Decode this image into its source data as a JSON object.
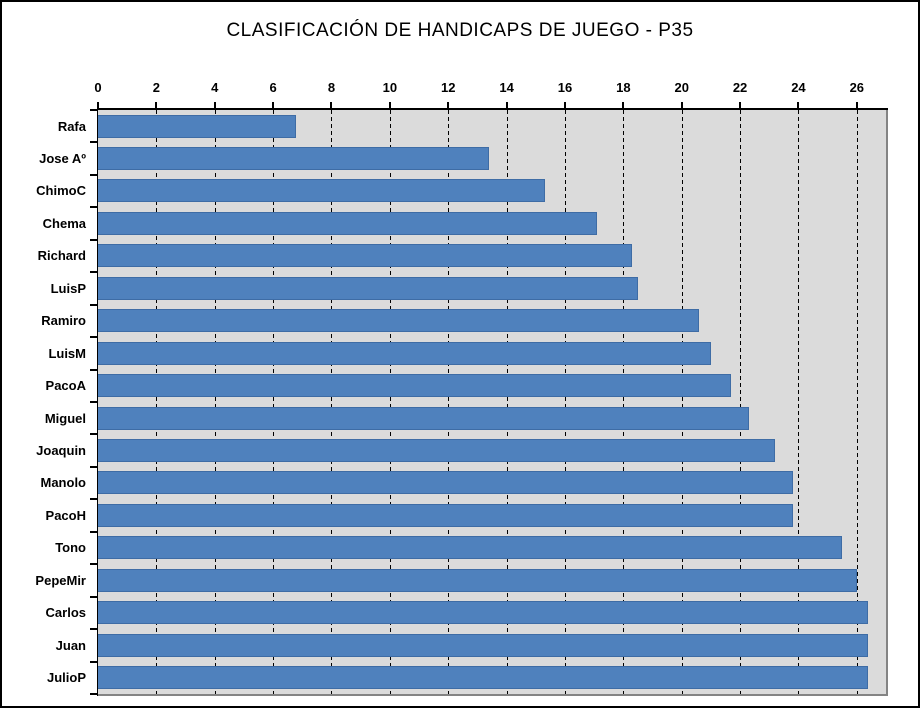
{
  "title": "CLASIFICACIÓN DE HANDICAPS DE JUEGO - P35",
  "chart_data": {
    "type": "bar",
    "orientation": "horizontal",
    "title": "CLASIFICACIÓN DE HANDICAPS DE JUEGO - P35",
    "categories": [
      "Rafa",
      "Jose Aº",
      "ChimoC",
      "Chema",
      "Richard",
      "LuisP",
      "Ramiro",
      "LuisM",
      "PacoA",
      "Miguel",
      "Joaquin",
      "Manolo",
      "PacoH",
      "Tono",
      "PepeMir",
      "Carlos",
      "Juan",
      "JulioP"
    ],
    "values": [
      6.8,
      13.4,
      15.3,
      17.1,
      18.3,
      18.5,
      20.6,
      21.0,
      21.7,
      22.3,
      23.2,
      23.8,
      23.8,
      25.5,
      26.0,
      26.4,
      26.4,
      26.4
    ],
    "xlabel": "",
    "ylabel": "",
    "xlim": [
      0,
      27
    ],
    "x_ticks": [
      0,
      2,
      4,
      6,
      8,
      10,
      12,
      14,
      16,
      18,
      20,
      22,
      24,
      26
    ],
    "grid": "vertical-dashed",
    "legend": "none",
    "bar_color": "#4F81BD",
    "bar_border_color": "#3E6CA5",
    "plot_bg_color": "#DBDBDB",
    "plot_border_color": "#848484",
    "axis_color": "#000000",
    "background_color": "#FFFFFF"
  }
}
